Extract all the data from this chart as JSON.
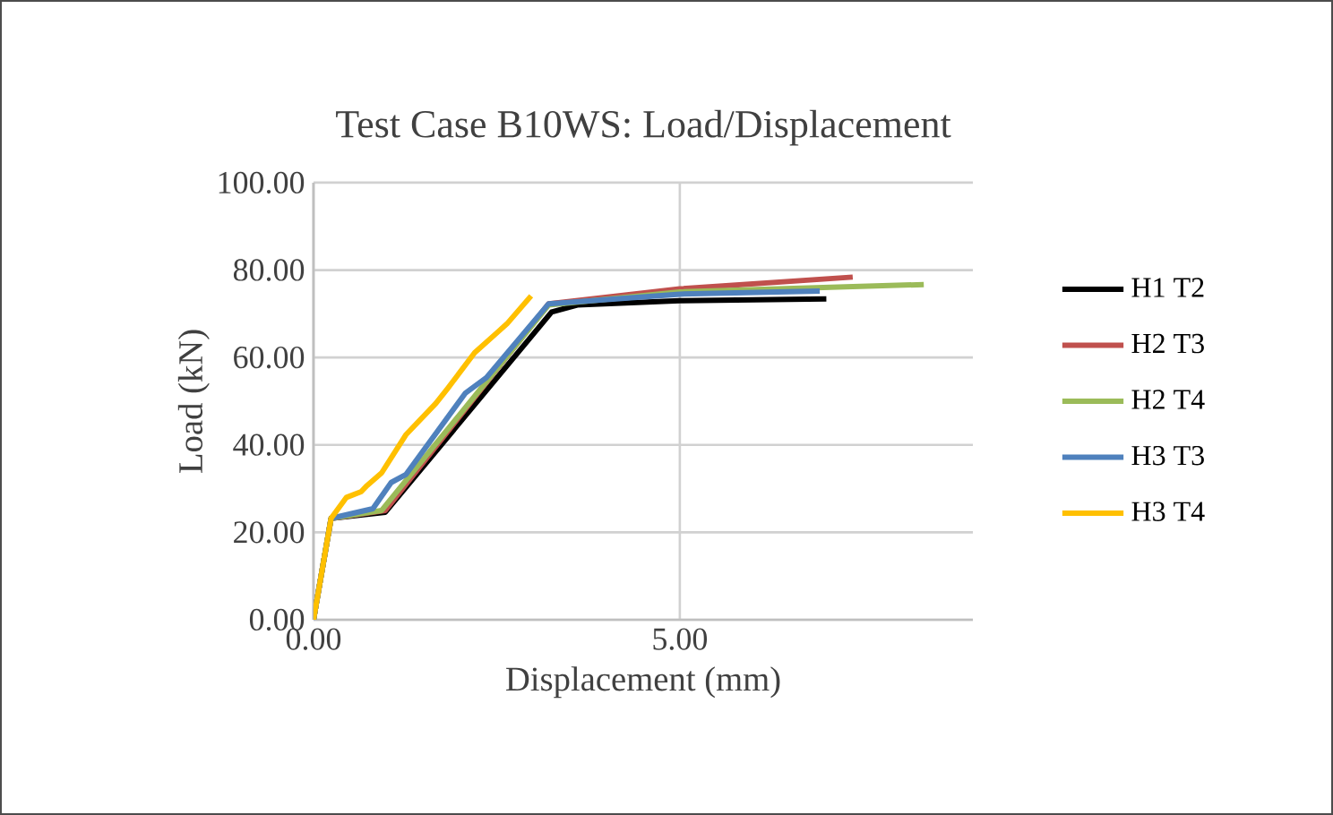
{
  "chart_data": {
    "type": "line",
    "title": "Test Case B10WS: Load/Displacement",
    "xlabel": "Displacement (mm)",
    "ylabel": "Load (kN)",
    "xlim": [
      0,
      9
    ],
    "xticks": [
      {
        "value": 0,
        "label": "0.00"
      },
      {
        "value": 5,
        "label": "5.00"
      }
    ],
    "ylim": [
      0,
      100
    ],
    "yticks": [
      {
        "value": 0,
        "label": "0.00"
      },
      {
        "value": 20,
        "label": "20.00"
      },
      {
        "value": 40,
        "label": "40.00"
      },
      {
        "value": 60,
        "label": "60.00"
      },
      {
        "value": 80,
        "label": "80.00"
      },
      {
        "value": 100,
        "label": "100.00"
      }
    ],
    "grid": true,
    "legend": "right",
    "marker": "none",
    "line_style": "solid",
    "series": [
      {
        "name": "H1 T2",
        "color": "#000000",
        "x": [
          0,
          0.24,
          0.98,
          3.25,
          3.6,
          5.0,
          7.0
        ],
        "values": [
          0,
          23.2,
          24.6,
          70.4,
          72.0,
          73.0,
          73.4
        ]
      },
      {
        "name": "H2 T3",
        "color": "#c0504d",
        "x": [
          0,
          0.24,
          0.98,
          3.21,
          5.0,
          7.36
        ],
        "values": [
          0,
          23.2,
          25.0,
          72.3,
          75.7,
          78.4
        ]
      },
      {
        "name": "H2 T4",
        "color": "#9bbb59",
        "x": [
          0,
          0.24,
          0.93,
          3.21,
          5.0,
          8.33
        ],
        "values": [
          0,
          23.2,
          25.0,
          72.0,
          75.0,
          76.7
        ]
      },
      {
        "name": "H3 T3",
        "color": "#4f81bd",
        "x": [
          0,
          0.24,
          0.81,
          1.06,
          1.26,
          2.07,
          2.36,
          3.21,
          5.0,
          6.91
        ],
        "values": [
          0,
          23.2,
          25.4,
          31.4,
          33.2,
          51.8,
          55.4,
          72.3,
          74.5,
          75.2
        ]
      },
      {
        "name": "H3 T4",
        "color": "#ffc000",
        "x": [
          0,
          0.24,
          0.45,
          0.65,
          0.73,
          0.93,
          1.26,
          1.67,
          1.83,
          2.2,
          2.52,
          2.64,
          2.97
        ],
        "values": [
          0,
          23.2,
          28.0,
          29.3,
          30.7,
          33.6,
          42.3,
          49.5,
          52.9,
          61.1,
          65.9,
          67.7,
          74.1
        ]
      }
    ]
  }
}
